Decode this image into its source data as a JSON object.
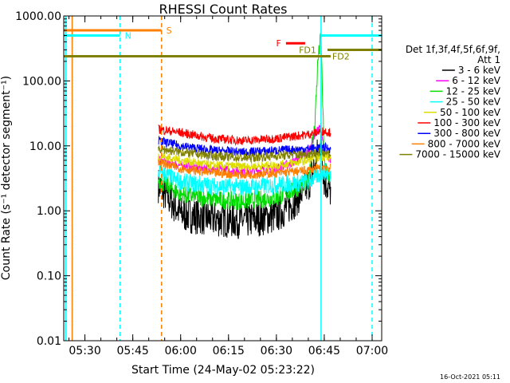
{
  "chart_data": {
    "type": "line",
    "title": "RHESSI Count Rates",
    "xlabel": "Start Time (24-May-02 05:23:22)",
    "ylabel": "Count Rate (s⁻¹ detector segment⁻¹)",
    "yscale": "log",
    "xlim": [
      "05:23:22",
      "07:03:00"
    ],
    "ylim": [
      0.01,
      1000
    ],
    "x_ticks": [
      "05:30",
      "05:45",
      "06:00",
      "06:15",
      "06:30",
      "06:45",
      "07:00"
    ],
    "y_ticks": [
      "0.01",
      "0.10",
      "1.00",
      "10.00",
      "100.00",
      "1000.00"
    ],
    "legend_header": [
      "Det 1f,3f,4f,5f,6f,9f,",
      "Att 1"
    ],
    "legend_position": "right",
    "footer": "16-Oct-2021 05:11",
    "series": [
      {
        "name": "3 - 6 keV",
        "color": "#000000",
        "x": [
          "05:53",
          "06:00",
          "06:10",
          "06:20",
          "06:30",
          "06:35",
          "06:40",
          "06:42",
          "06:44",
          "06:45",
          "06:47"
        ],
        "values": [
          2.5,
          0.9,
          0.75,
          0.7,
          0.85,
          1.3,
          2.5,
          5,
          12,
          3,
          2
        ]
      },
      {
        "name": "6 - 12 keV",
        "color": "#ff00ff",
        "x": [
          "05:53",
          "06:00",
          "06:10",
          "06:20",
          "06:30",
          "06:35",
          "06:40",
          "06:42",
          "06:44",
          "06:45",
          "06:47"
        ],
        "values": [
          6,
          5,
          4.5,
          4,
          4.5,
          5.5,
          8,
          15,
          20,
          8,
          6
        ]
      },
      {
        "name": "12 - 25 keV",
        "color": "#00dd00",
        "x": [
          "05:53",
          "06:00",
          "06:10",
          "06:20",
          "06:30",
          "06:35",
          "06:40",
          "06:42",
          "06:43",
          "06:44",
          "06:45",
          "06:47"
        ],
        "values": [
          3,
          1.8,
          1.5,
          1.4,
          1.6,
          2,
          2.8,
          20,
          200,
          500,
          5,
          3
        ]
      },
      {
        "name": "25 - 50 keV",
        "color": "#00ffff",
        "x": [
          "05:53",
          "06:00",
          "06:10",
          "06:20",
          "06:30",
          "06:40",
          "06:45",
          "06:47"
        ],
        "values": [
          4,
          2.8,
          2.4,
          2.3,
          2.5,
          2.8,
          4,
          3.5
        ]
      },
      {
        "name": "50 - 100 keV",
        "color": "#dddd00",
        "x": [
          "05:53",
          "06:00",
          "06:10",
          "06:20",
          "06:30",
          "06:40",
          "06:45",
          "06:47"
        ],
        "values": [
          7,
          6,
          5,
          4.8,
          5,
          6,
          7,
          6.5
        ]
      },
      {
        "name": "100 - 300 keV",
        "color": "#ff0000",
        "x": [
          "05:53",
          "06:00",
          "06:10",
          "06:20",
          "06:30",
          "06:40",
          "06:45",
          "06:47"
        ],
        "values": [
          18,
          16,
          13,
          12,
          13,
          15,
          17,
          16
        ]
      },
      {
        "name": "300 - 800 keV",
        "color": "#0000ff",
        "x": [
          "05:53",
          "06:00",
          "06:10",
          "06:20",
          "06:30",
          "06:40",
          "06:45",
          "06:47"
        ],
        "values": [
          12,
          10,
          8.5,
          8,
          8.5,
          9,
          9.5,
          9
        ]
      },
      {
        "name": "800 - 7000 keV",
        "color": "#ff8000",
        "x": [
          "05:53",
          "06:00",
          "06:10",
          "06:20",
          "06:30",
          "06:40",
          "06:45",
          "06:47"
        ],
        "values": [
          5.5,
          4.5,
          3.8,
          3.6,
          3.8,
          4.2,
          4.8,
          4.5
        ]
      },
      {
        "name": "7000 - 15000 keV",
        "color": "#808000",
        "x": [
          "05:53",
          "06:00",
          "06:10",
          "06:20",
          "06:30",
          "06:40",
          "06:45",
          "06:47"
        ],
        "values": [
          9,
          8,
          7,
          6.5,
          7,
          7.5,
          8,
          7.5
        ]
      }
    ],
    "flags": [
      {
        "label": "S",
        "color": "#ff8000",
        "x_start": "05:23:22",
        "x_end": "05:54",
        "y": 600
      },
      {
        "label": "N",
        "color": "#00ffff",
        "x_start": "05:23:22",
        "x_end": "05:41",
        "y": 500
      },
      {
        "label": "F",
        "color": "#ff0000",
        "x_start": "06:33",
        "x_end": "06:39",
        "y": 380
      },
      {
        "label": "FD1",
        "color": "#808000",
        "x_start": "05:23:22",
        "x_end": "06:43",
        "y": 240
      },
      {
        "label": "",
        "color": "#00ffff",
        "x_start": "06:44",
        "x_end": "07:03",
        "y": 500
      },
      {
        "label": "",
        "color": "#808000",
        "x_start": "06:46",
        "x_end": "07:03",
        "y": 300
      },
      {
        "label": "FD2",
        "color": "#808000",
        "x_start": "06:42",
        "x_end": "06:47",
        "y": 240
      }
    ],
    "vertical_lines": [
      {
        "color": "#00ffff",
        "style": "solid",
        "x": "05:24"
      },
      {
        "color": "#ff8000",
        "style": "solid",
        "x": "05:26"
      },
      {
        "color": "#00ffff",
        "style": "dashed",
        "x": "05:41"
      },
      {
        "color": "#ff8000",
        "style": "dashed",
        "x": "05:54"
      },
      {
        "color": "#00ffff",
        "style": "solid",
        "x": "06:44"
      },
      {
        "color": "#00ffff",
        "style": "dashed",
        "x": "07:00"
      }
    ]
  }
}
